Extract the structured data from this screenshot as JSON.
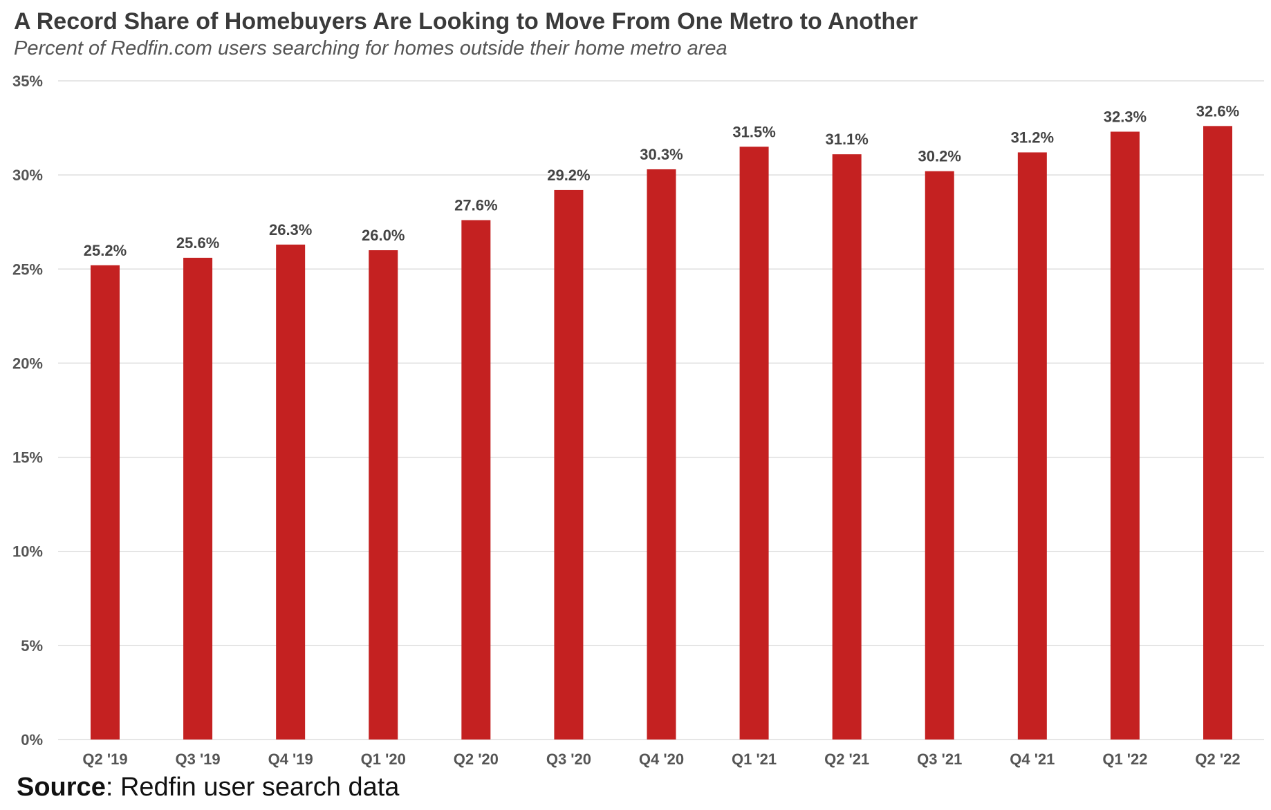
{
  "chart_data": {
    "type": "bar",
    "title": "A Record Share of Homebuyers Are Looking to Move From One Metro to Another",
    "subtitle": "Percent of Redfin.com users searching for homes outside their home metro area",
    "xlabel": "",
    "ylabel": "",
    "categories": [
      "Q2 '19",
      "Q3 '19",
      "Q4 '19",
      "Q1 '20",
      "Q2 '20",
      "Q3 '20",
      "Q4 '20",
      "Q1 '21",
      "Q2 '21",
      "Q3 '21",
      "Q4 '21",
      "Q1 '22",
      "Q2 '22"
    ],
    "values": [
      25.2,
      25.6,
      26.3,
      26.0,
      27.6,
      29.2,
      30.3,
      31.5,
      31.1,
      30.2,
      31.2,
      32.3,
      32.6
    ],
    "data_labels": [
      "25.2%",
      "25.6%",
      "26.3%",
      "26.0%",
      "27.6%",
      "29.2%",
      "30.3%",
      "31.5%",
      "31.1%",
      "30.2%",
      "31.2%",
      "32.3%",
      "32.6%"
    ],
    "ylim": [
      0,
      35
    ],
    "y_ticks": [
      0,
      5,
      10,
      15,
      20,
      25,
      30,
      35
    ],
    "y_tick_labels": [
      "0%",
      "5%",
      "10%",
      "15%",
      "20%",
      "25%",
      "30%",
      "35%"
    ],
    "grid": true,
    "legend": "none",
    "bar_color": "#c42121",
    "grid_color": "#dddddd"
  },
  "source": {
    "label": "Source",
    "text": ": Redfin user search data"
  }
}
